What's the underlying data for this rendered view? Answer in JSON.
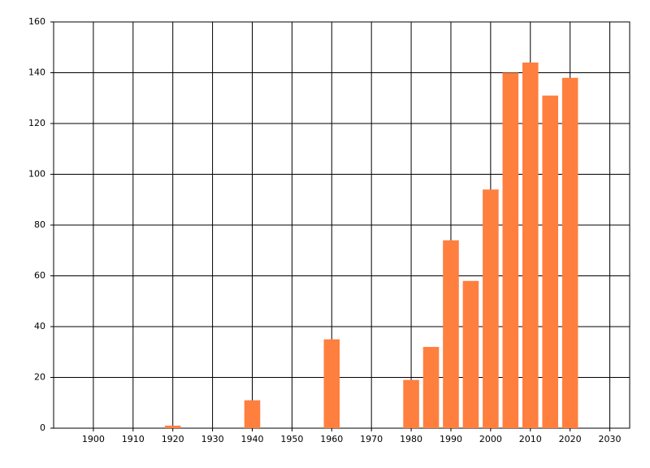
{
  "chart_data": {
    "type": "bar",
    "color": "#ff7f3f",
    "grid": true,
    "x": [
      1920,
      1940,
      1960,
      1980,
      1985,
      1990,
      1995,
      2000,
      2005,
      2010,
      2015,
      2020
    ],
    "values": [
      1,
      11,
      35,
      19,
      32,
      74,
      58,
      94,
      140,
      144,
      131,
      138
    ],
    "xlim": [
      1890,
      2035
    ],
    "xticks": [
      1900,
      1910,
      1920,
      1930,
      1940,
      1950,
      1960,
      1970,
      1980,
      1990,
      2000,
      2010,
      2020,
      2030
    ],
    "ylim": [
      0,
      160
    ],
    "yticks": [
      0,
      20,
      40,
      60,
      80,
      100,
      120,
      140,
      160
    ]
  }
}
